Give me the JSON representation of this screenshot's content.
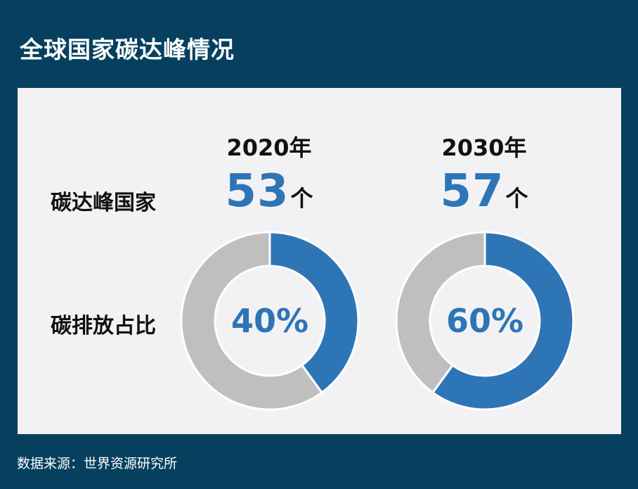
{
  "title": "全球国家碳达峰情况",
  "source": "数据来源：世界资源研究所",
  "row_labels": {
    "peak_countries": "碳达峰国家",
    "emission_share": "碳排放占比"
  },
  "colors": {
    "background": "#06405e",
    "panel": "#f2f2f4",
    "accent": "#2e75b6",
    "remainder": "#bfbfbf"
  },
  "chart_data": [
    {
      "type": "pie",
      "title": "2020年",
      "count_value": "53",
      "count_unit": "个",
      "categories": [
        "碳排放占比",
        ""
      ],
      "values": [
        40,
        60
      ],
      "center_label": "40%"
    },
    {
      "type": "pie",
      "title": "2030年",
      "count_value": "57",
      "count_unit": "个",
      "categories": [
        "碳排放占比",
        ""
      ],
      "values": [
        60,
        40
      ],
      "center_label": "60%"
    }
  ]
}
